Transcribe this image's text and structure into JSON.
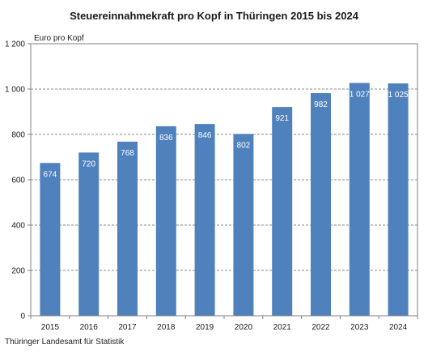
{
  "chart_data": {
    "type": "bar",
    "title": "Steuereinnahmekraft pro Kopf in Thüringen 2015 bis 2024",
    "ylabel": "Euro pro Kopf",
    "xlabel": "",
    "categories": [
      "2015",
      "2016",
      "2017",
      "2018",
      "2019",
      "2020",
      "2021",
      "2022",
      "2023",
      "2024"
    ],
    "values": [
      674,
      720,
      768,
      836,
      846,
      802,
      921,
      982,
      1027,
      1025
    ],
    "value_labels": [
      "674",
      "720",
      "768",
      "836",
      "846",
      "802",
      "921",
      "982",
      "1 027",
      "1 025"
    ],
    "ylim": [
      0,
      1200
    ],
    "yticks": [
      0,
      200,
      400,
      600,
      800,
      1000,
      1200
    ],
    "ytick_labels": [
      "0",
      "200",
      "400",
      "600",
      "800",
      "1 000",
      "1 200"
    ],
    "grid": "horizontal dashed",
    "bar_color": "#4f81bd",
    "legend": "none"
  },
  "footer": {
    "source": "Thüringer Landesamt für Statistik"
  }
}
